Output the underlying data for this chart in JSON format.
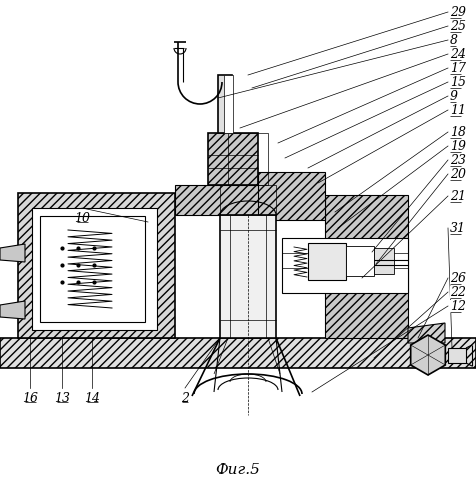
{
  "bg": "#ffffff",
  "fg": "#000000",
  "title": "Фиг.5",
  "lw": 0.8,
  "lw2": 1.2,
  "label_fs": 9,
  "title_fs": 11,
  "right_labels": [
    [
      "29",
      248,
      75,
      448,
      12
    ],
    [
      "25",
      252,
      88,
      448,
      26
    ],
    [
      "8",
      218,
      98,
      448,
      40
    ],
    [
      "24",
      240,
      128,
      448,
      54
    ],
    [
      "17",
      278,
      143,
      448,
      68
    ],
    [
      "15",
      285,
      158,
      448,
      82
    ],
    [
      "9",
      308,
      168,
      448,
      96
    ],
    [
      "11",
      318,
      183,
      448,
      110
    ],
    [
      "18",
      335,
      212,
      448,
      132
    ],
    [
      "19",
      338,
      228,
      448,
      146
    ],
    [
      "23",
      372,
      252,
      448,
      160
    ],
    [
      "20",
      376,
      264,
      448,
      174
    ],
    [
      "21",
      362,
      278,
      448,
      196
    ],
    [
      "31",
      452,
      348,
      448,
      228
    ],
    [
      "26",
      418,
      338,
      448,
      278
    ],
    [
      "22",
      374,
      358,
      448,
      292
    ],
    [
      "12",
      312,
      392,
      448,
      306
    ]
  ],
  "left_labels": [
    [
      "10",
      148,
      222,
      82,
      208
    ],
    [
      "16",
      30,
      338,
      30,
      388
    ],
    [
      "13",
      62,
      336,
      62,
      388
    ],
    [
      "14",
      92,
      338,
      92,
      388
    ],
    [
      "2",
      220,
      338,
      185,
      388
    ]
  ]
}
